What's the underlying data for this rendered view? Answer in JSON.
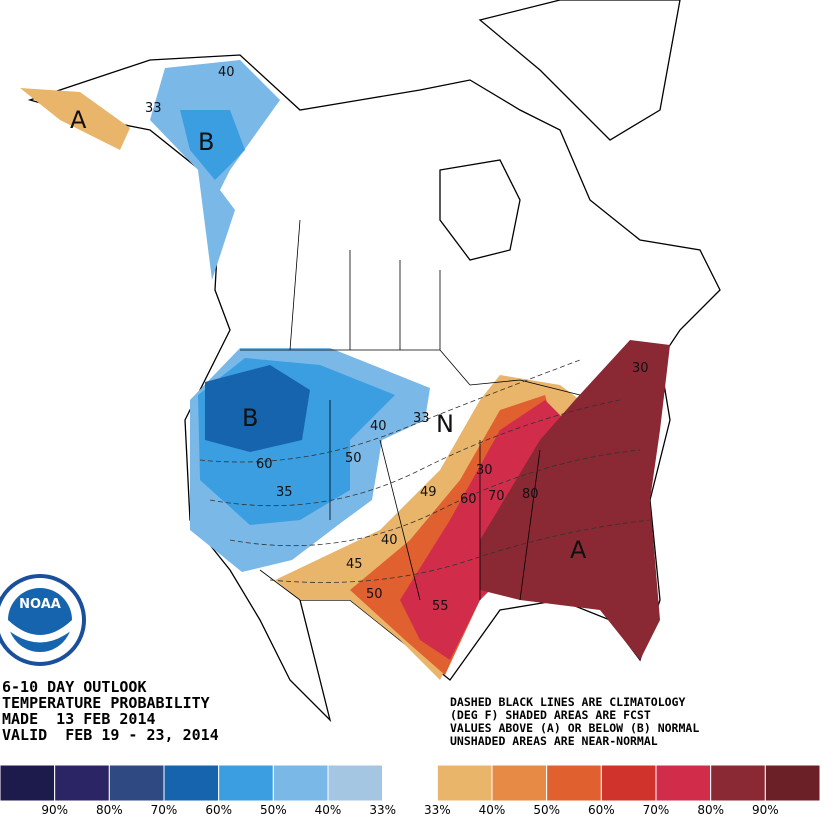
{
  "header": {
    "lines": [
      "6-10 DAY OUTLOOK",
      "TEMPERATURE PROBABILITY",
      "MADE  13 FEB 2014",
      "VALID  FEB 19 - 23, 2014"
    ]
  },
  "notes": {
    "lines": [
      "DASHED BLACK LINES ARE CLIMATOLOGY",
      "(DEG F) SHADED AREAS ARE FCST",
      "VALUES ABOVE (A) OR BELOW (B) NORMAL",
      "UNSHADED AREAS ARE NEAR-NORMAL"
    ]
  },
  "logo": {
    "text": "NOAA"
  },
  "map_labels": [
    "B",
    "A",
    "B",
    "A",
    "N",
    "40",
    "50",
    "60",
    "35",
    "33",
    "40",
    "33",
    "30",
    "40",
    "45",
    "50",
    "55",
    "60",
    "70",
    "80",
    "30",
    "49"
  ],
  "legend": {
    "colors": [
      "#1d1a4c",
      "#2b2565",
      "#2f4a82",
      "#1764ae",
      "#3a9ee0",
      "#7ab8e8",
      "#a4c6e2",
      "#ffffff",
      "#e9b56b",
      "#e68a46",
      "#e1602f",
      "#d0332b",
      "#d12d4b",
      "#8a2834",
      "#6b1f26"
    ],
    "labels": [
      "90%",
      "80%",
      "70%",
      "60%",
      "50%",
      "40%",
      "33%",
      "33%",
      "40%",
      "50%",
      "60%",
      "70%",
      "80%",
      "90%"
    ]
  }
}
